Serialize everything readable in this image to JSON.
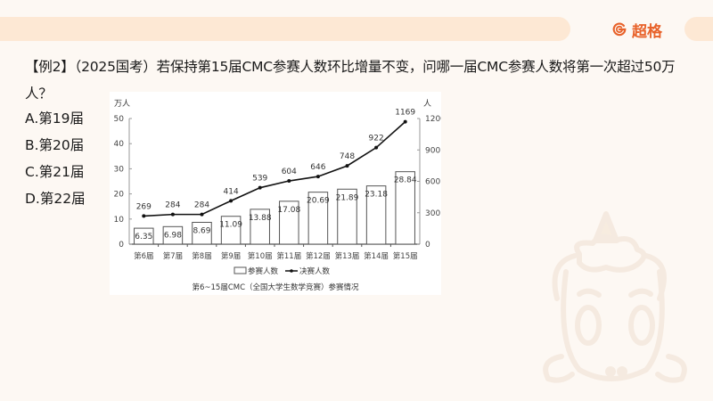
{
  "header": {
    "brand_name": "超格",
    "brand_icon": "g-logo-icon",
    "brand_color": "#e8622a"
  },
  "question": {
    "text": "【例2】（2025国考）若保持第15届CMC参赛人数环比增量不变，问哪一届CMC参赛人数将第一次超过50万人？"
  },
  "options": [
    {
      "label": "A.第19届"
    },
    {
      "label": "B.第20届"
    },
    {
      "label": "C.第21届"
    },
    {
      "label": "D.第22届"
    }
  ],
  "chart_data": {
    "type": "bar+line",
    "title": "第6~15届CMC（全国大学生数学竞赛）参赛情况",
    "categories": [
      "第6届",
      "第7届",
      "第8届",
      "第9届",
      "第10届",
      "第11届",
      "第12届",
      "第13届",
      "第14届",
      "第15届"
    ],
    "series": [
      {
        "name": "参赛人数",
        "type": "bar",
        "axis": "left",
        "unit": "万人",
        "values": [
          6.35,
          6.98,
          8.69,
          11.09,
          13.88,
          17.08,
          20.69,
          21.89,
          23.18,
          28.84
        ]
      },
      {
        "name": "决赛人数",
        "type": "line",
        "axis": "right",
        "unit": "人",
        "values": [
          269,
          284,
          284,
          414,
          539,
          604,
          646,
          748,
          922,
          1169
        ]
      }
    ],
    "ylabel_left": "万人",
    "ylabel_right": "人",
    "ylim_left": [
      0,
      50
    ],
    "yticks_left": [
      0,
      10,
      20,
      30,
      40,
      50
    ],
    "ylim_right": [
      0,
      1200
    ],
    "yticks_right": [
      0,
      300,
      600,
      900,
      1200
    ],
    "legend": [
      "参赛人数",
      "决赛人数"
    ],
    "legend_position": "bottom",
    "grid": false
  }
}
